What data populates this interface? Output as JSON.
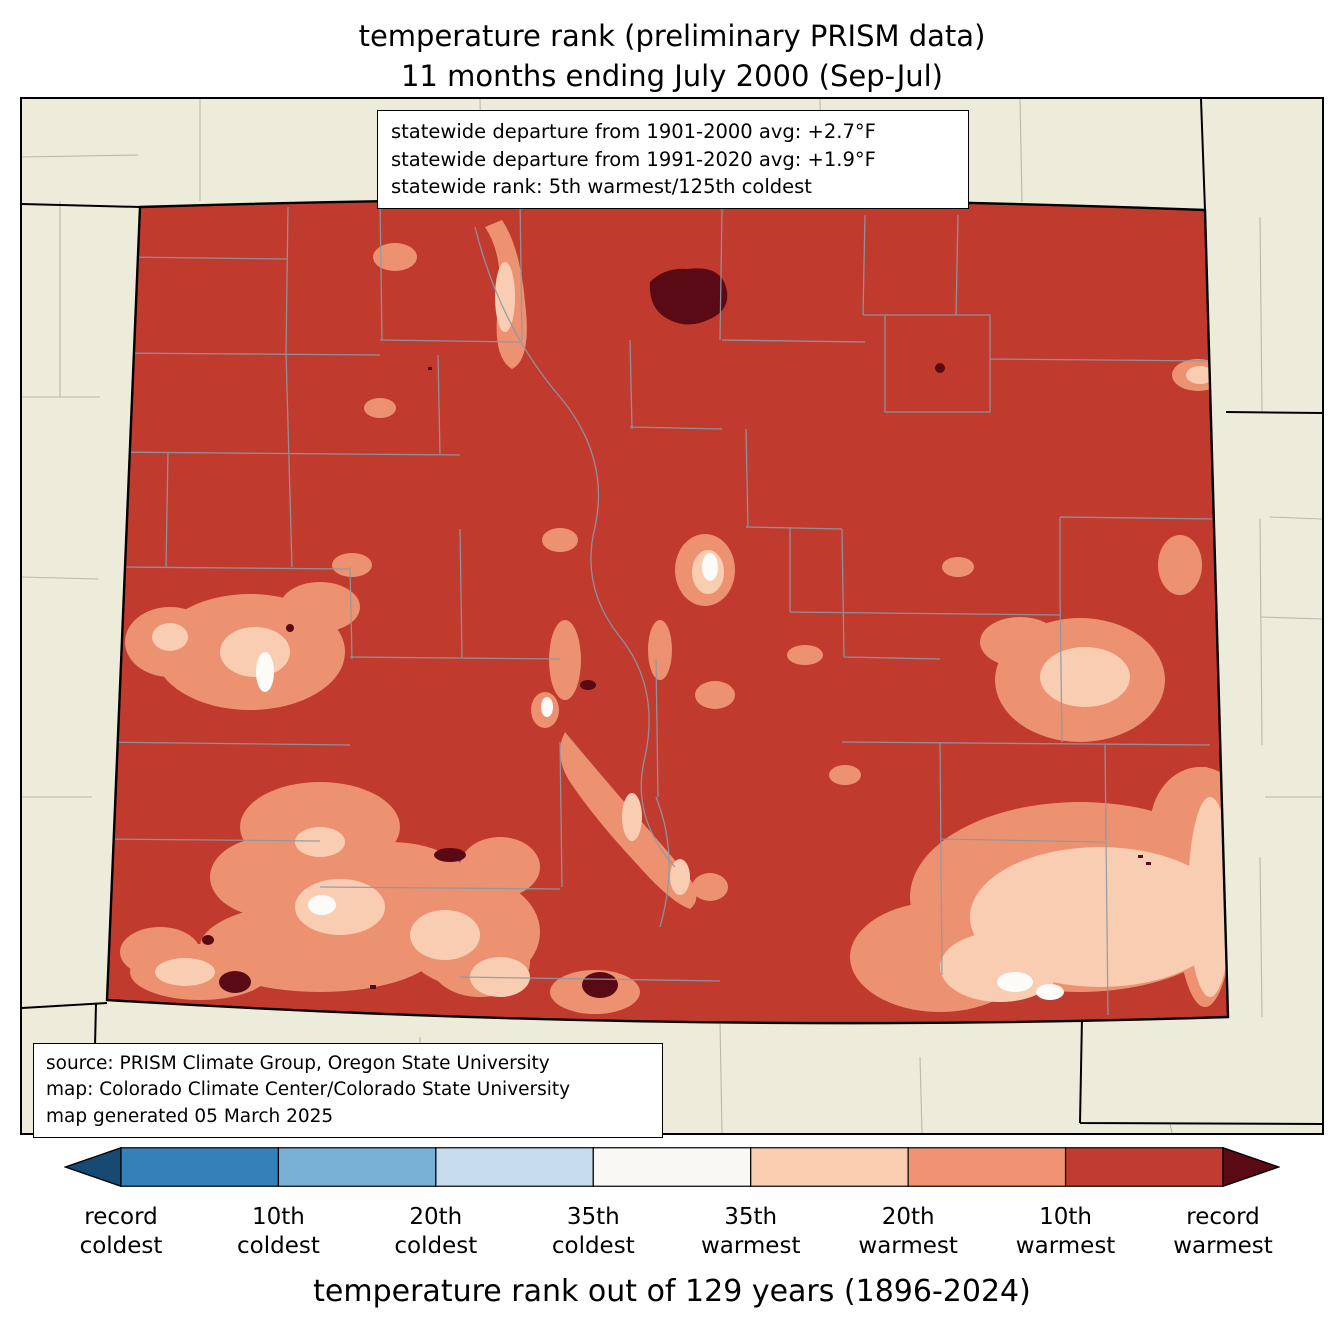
{
  "title": {
    "line1": "temperature rank (preliminary PRISM data)",
    "line2": "11 months ending July 2000 (Sep-Jul)"
  },
  "stats_box": {
    "lines": [
      "statewide departure from 1901-2000 avg: +2.7°F",
      "statewide departure from 1991-2020 avg: +1.9°F",
      "statewide rank: 5th warmest/125th coldest"
    ]
  },
  "source_box": {
    "lines": [
      "source: PRISM Climate Group, Oregon State University",
      "map: Colorado Climate Center/Colorado State University",
      "map generated 05 March 2025"
    ]
  },
  "colorbar": {
    "caption": "temperature rank out of 129 years (1896-2024)",
    "labels": [
      {
        "line1": "record",
        "line2": "coldest"
      },
      {
        "line1": "10th",
        "line2": "coldest"
      },
      {
        "line1": "20th",
        "line2": "coldest"
      },
      {
        "line1": "35th",
        "line2": "coldest"
      },
      {
        "line1": "35th",
        "line2": "warmest"
      },
      {
        "line1": "20th",
        "line2": "warmest"
      },
      {
        "line1": "10th",
        "line2": "warmest"
      },
      {
        "line1": "record",
        "line2": "warmest"
      }
    ],
    "left_arrow_color": "#164a73",
    "right_arrow_color": "#5a0a14",
    "segment_colors": [
      "#3480b9",
      "#79b1d6",
      "#c6dcec",
      "#f9f8f4",
      "#fbcdb0",
      "#ef9372",
      "#c23b30"
    ]
  },
  "map": {
    "region": "Colorado county map",
    "colors": {
      "background": "#edecdb",
      "state_fill": "#c03a2e",
      "patch_salmon": "#ec9271",
      "patch_peach": "#f9cdb2",
      "patch_white": "#fcfbf7",
      "record_warmest": "#5a0a14",
      "county_line": "#8b9aa6",
      "border": "#000000"
    }
  },
  "chart_data": {
    "type": "heatmap",
    "title": "temperature rank (preliminary PRISM data) — 11 months ending July 2000 (Sep-Jul)",
    "region": "Colorado (county map)",
    "statewide_departure_1901_2000_avg_F": 2.7,
    "statewide_departure_1991_2020_avg_F": 1.9,
    "statewide_rank": "5th warmest/125th coldest",
    "rank_scale": "temperature rank out of 129 years (1896-2024)",
    "legend_categories": [
      "record coldest",
      "10th coldest",
      "20th coldest",
      "35th coldest",
      "35th warmest",
      "20th warmest",
      "10th warmest",
      "record warmest"
    ],
    "dominant_category": "10th warmest (red) over most of the state",
    "secondary_features": "20th/35th-warmest salmon and peach patches in the central mountains, south-central valleys and southeast plains; small white 35th-rank spots; scattered record-warmest dark-maroon blobs in the north-central and southern areas"
  }
}
